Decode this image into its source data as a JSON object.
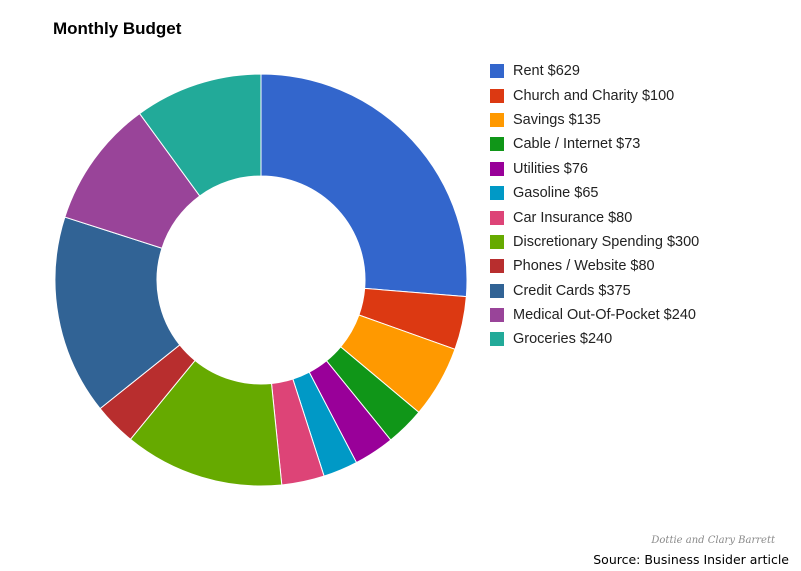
{
  "chart_data": {
    "type": "pie",
    "donut": true,
    "title": "Monthly Budget",
    "legend_position": "right",
    "slices": [
      {
        "label": "Rent $629",
        "value": 629,
        "color": "#3366cc"
      },
      {
        "label": "Church and Charity $100",
        "value": 100,
        "color": "#dc3912"
      },
      {
        "label": "Savings $135",
        "value": 135,
        "color": "#ff9900"
      },
      {
        "label": "Cable / Internet $73",
        "value": 73,
        "color": "#109618"
      },
      {
        "label": "Utilities $76",
        "value": 76,
        "color": "#990099"
      },
      {
        "label": "Gasoline $65",
        "value": 65,
        "color": "#0099c6"
      },
      {
        "label": "Car Insurance $80",
        "value": 80,
        "color": "#dd4477"
      },
      {
        "label": "Discretionary Spending $300",
        "value": 300,
        "color": "#66aa00"
      },
      {
        "label": "Phones / Website $80",
        "value": 80,
        "color": "#b82e2e"
      },
      {
        "label": "Credit Cards $375",
        "value": 375,
        "color": "#316395"
      },
      {
        "label": "Medical Out-Of-Pocket $240",
        "value": 240,
        "color": "#994499"
      },
      {
        "label": "Groceries $240",
        "value": 240,
        "color": "#22aa99"
      }
    ]
  },
  "credit": "Dottie and Clary Barrett",
  "source": "Source: Business Insider article"
}
